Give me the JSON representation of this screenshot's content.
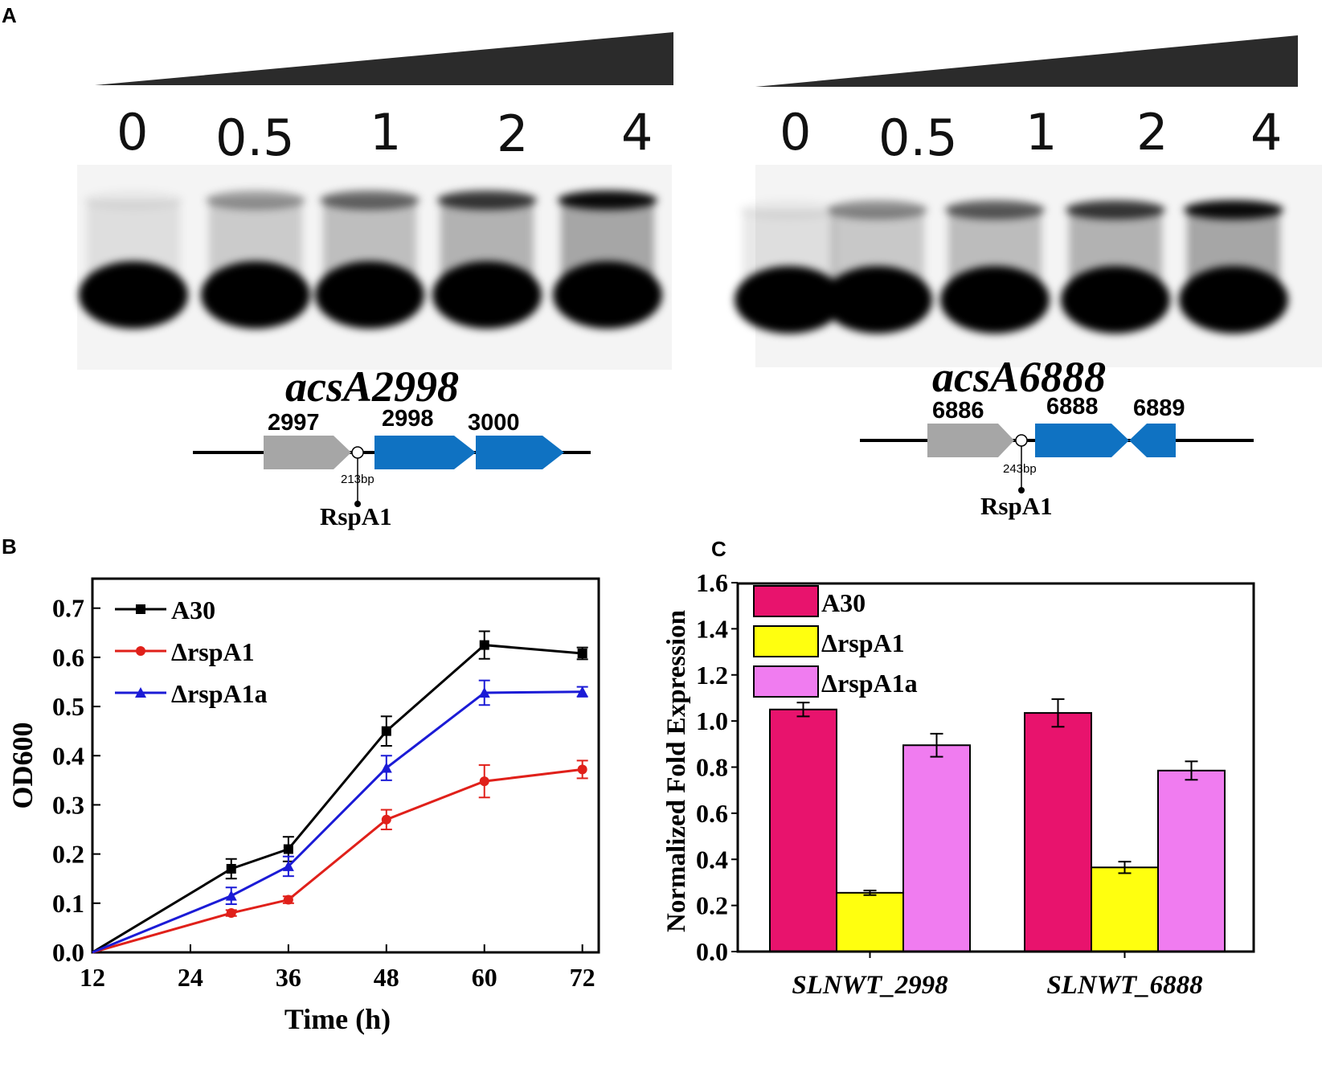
{
  "panel_labels": {
    "a": "A",
    "b": "B",
    "c": "C"
  },
  "emsa": [
    {
      "gene_title": "acsA2998",
      "lanes": [
        "0",
        "0.5",
        "1",
        "2",
        "4"
      ],
      "shift_band_intensity": [
        0.05,
        0.35,
        0.55,
        0.75,
        0.95
      ],
      "genes": [
        "2997",
        "2998",
        "3000"
      ],
      "gene_colors": [
        "#a6a6a6",
        "#0f72c2",
        "#0f72c2"
      ],
      "distance_label": "213bp",
      "regulator": "RspA1"
    },
    {
      "gene_title": "acsA6888",
      "lanes": [
        "0",
        "0.5",
        "1",
        "2",
        "4"
      ],
      "shift_band_intensity": [
        0.05,
        0.4,
        0.6,
        0.75,
        0.95
      ],
      "genes": [
        "6886",
        "6888",
        "6889"
      ],
      "gene_colors": [
        "#a6a6a6",
        "#0f72c2",
        "#0f72c2"
      ],
      "distance_label": "243bp",
      "regulator": "RspA1"
    }
  ],
  "chart_data": [
    {
      "type": "line",
      "xlabel": "Time (h)",
      "ylabel": "OD600",
      "xlim": [
        12,
        74
      ],
      "ylim": [
        0,
        0.76
      ],
      "xticks": [
        12,
        24,
        36,
        48,
        60,
        72
      ],
      "yticks": [
        0.0,
        0.1,
        0.2,
        0.3,
        0.4,
        0.5,
        0.6,
        0.7
      ],
      "legend_position": "top-left",
      "series": [
        {
          "name": "A30",
          "color": "#000000",
          "marker": "square",
          "x": [
            12,
            29,
            36,
            48,
            60,
            72
          ],
          "y": [
            0.0,
            0.17,
            0.21,
            0.45,
            0.625,
            0.608
          ],
          "err": [
            0,
            0.02,
            0.025,
            0.03,
            0.028,
            0.012
          ]
        },
        {
          "name": "ΔrspA1",
          "color": "#e0201a",
          "marker": "circle",
          "x": [
            12,
            29,
            36,
            48,
            60,
            72
          ],
          "y": [
            0.0,
            0.08,
            0.107,
            0.27,
            0.348,
            0.372
          ],
          "err": [
            0,
            0.006,
            0.007,
            0.02,
            0.033,
            0.018
          ]
        },
        {
          "name": "ΔrspA1a",
          "color": "#1b1bd6",
          "marker": "triangle",
          "x": [
            12,
            29,
            36,
            48,
            60,
            72
          ],
          "y": [
            0.0,
            0.115,
            0.175,
            0.375,
            0.528,
            0.53
          ],
          "err": [
            0,
            0.017,
            0.02,
            0.025,
            0.025,
            0.01
          ]
        }
      ]
    },
    {
      "type": "bar",
      "ylabel": "Normalized Fold Expression",
      "ylim": [
        0,
        1.6
      ],
      "yticks": [
        0.0,
        0.2,
        0.4,
        0.6,
        0.8,
        1.0,
        1.2,
        1.4,
        1.6
      ],
      "categories": [
        "SLNWT_2998",
        "SLNWT_6888"
      ],
      "legend_position": "top-left",
      "series": [
        {
          "name": "A30",
          "color": "#e8136d",
          "values": [
            1.05,
            1.035
          ],
          "err": [
            0.03,
            0.06
          ]
        },
        {
          "name": "ΔrspA1",
          "color": "#ffff0f",
          "values": [
            0.255,
            0.365
          ],
          "err": [
            0.01,
            0.025
          ]
        },
        {
          "name": "ΔrspA1a",
          "color": "#f07cf0",
          "values": [
            0.895,
            0.785
          ],
          "err": [
            0.05,
            0.04
          ]
        }
      ]
    }
  ]
}
